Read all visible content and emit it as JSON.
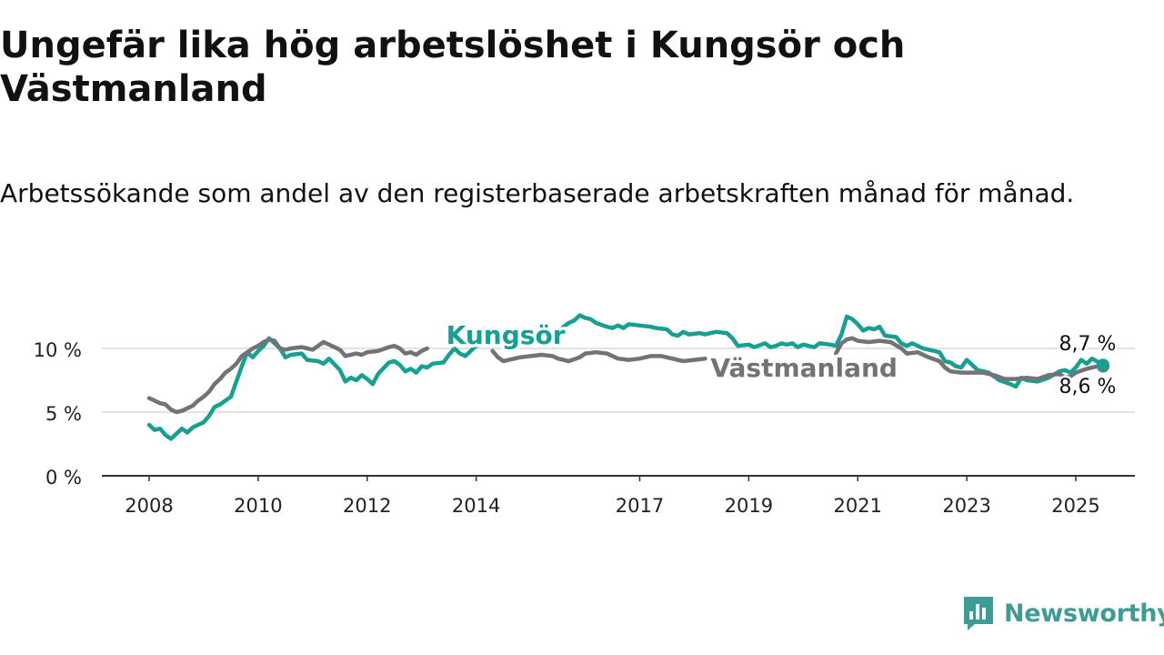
{
  "title": "Ungefär lika hög arbetslöshet i Kungsör och Västmanland",
  "subtitle": "Arbetssökande som andel av den registerbaserade arbetskraften månad för månad.",
  "brand": {
    "name": "Newsworthy",
    "icon": "newsworthy-logo-icon",
    "color": "#3d9c93"
  },
  "chart_data": {
    "type": "line",
    "title": "Ungefär lika hög arbetslöshet i Kungsör och Västmanland",
    "subtitle": "Arbetssökande som andel av den registerbaserade arbetskraften månad för månad.",
    "xlabel": "",
    "ylabel": "",
    "xlim": [
      2008,
      2025.5
    ],
    "ylim": [
      0,
      12
    ],
    "y_ticks": [
      0,
      5,
      10
    ],
    "y_tick_labels": [
      "0 %",
      "5 %",
      "10 %"
    ],
    "x_ticks": [
      2008,
      2010,
      2012,
      2014,
      2017,
      2019,
      2021,
      2023,
      2025
    ],
    "x_tick_labels": [
      "2008",
      "2010",
      "2012",
      "2014",
      "2017",
      "2019",
      "2021",
      "2023",
      "2025"
    ],
    "grid": "horizontal",
    "legend": "direct labels on lines",
    "series": [
      {
        "name": "Kungsör",
        "color": "#16a092",
        "end_label": "8,7 %",
        "label_position": "above line near 2014",
        "points": [
          [
            2008.0,
            4.0
          ],
          [
            2008.1,
            3.6
          ],
          [
            2008.2,
            3.7
          ],
          [
            2008.3,
            3.2
          ],
          [
            2008.4,
            2.9
          ],
          [
            2008.5,
            3.3
          ],
          [
            2008.6,
            3.7
          ],
          [
            2008.7,
            3.4
          ],
          [
            2008.8,
            3.8
          ],
          [
            2008.9,
            4.0
          ],
          [
            2009.0,
            4.2
          ],
          [
            2009.1,
            4.7
          ],
          [
            2009.2,
            5.4
          ],
          [
            2009.3,
            5.6
          ],
          [
            2009.4,
            5.9
          ],
          [
            2009.5,
            6.2
          ],
          [
            2009.6,
            7.4
          ],
          [
            2009.7,
            8.6
          ],
          [
            2009.8,
            9.7
          ],
          [
            2009.9,
            9.3
          ],
          [
            2010.0,
            9.8
          ],
          [
            2010.1,
            10.2
          ],
          [
            2010.2,
            10.8
          ],
          [
            2010.3,
            10.4
          ],
          [
            2010.4,
            10.0
          ],
          [
            2010.5,
            9.3
          ],
          [
            2010.6,
            9.5
          ],
          [
            2010.8,
            9.6
          ],
          [
            2010.9,
            9.1
          ],
          [
            2011.1,
            9.0
          ],
          [
            2011.2,
            8.8
          ],
          [
            2011.3,
            9.2
          ],
          [
            2011.5,
            8.3
          ],
          [
            2011.6,
            7.4
          ],
          [
            2011.7,
            7.7
          ],
          [
            2011.8,
            7.5
          ],
          [
            2011.9,
            7.9
          ],
          [
            2012.0,
            7.6
          ],
          [
            2012.1,
            7.2
          ],
          [
            2012.2,
            8.0
          ],
          [
            2012.4,
            8.9
          ],
          [
            2012.5,
            9.0
          ],
          [
            2012.6,
            8.7
          ],
          [
            2012.7,
            8.2
          ],
          [
            2012.8,
            8.4
          ],
          [
            2012.9,
            8.1
          ],
          [
            2013.0,
            8.6
          ],
          [
            2013.1,
            8.5
          ],
          [
            2013.2,
            8.8
          ],
          [
            2013.4,
            8.9
          ],
          [
            2013.5,
            9.5
          ],
          [
            2013.6,
            10.0
          ],
          [
            2013.7,
            9.6
          ],
          [
            2013.8,
            9.4
          ],
          [
            2014.0,
            10.2
          ],
          [
            2014.5,
            10.6
          ],
          [
            2014.9,
            10.5
          ],
          [
            2015.1,
            10.9
          ],
          [
            2015.3,
            11.0
          ],
          [
            2015.4,
            10.6
          ],
          [
            2015.6,
            11.7
          ],
          [
            2015.7,
            12.0
          ],
          [
            2015.8,
            12.2
          ],
          [
            2015.9,
            12.6
          ],
          [
            2016.0,
            12.4
          ],
          [
            2016.1,
            12.3
          ],
          [
            2016.2,
            12.0
          ],
          [
            2016.4,
            11.7
          ],
          [
            2016.5,
            11.6
          ],
          [
            2016.6,
            11.8
          ],
          [
            2016.7,
            11.6
          ],
          [
            2016.8,
            11.9
          ],
          [
            2017.0,
            11.8
          ],
          [
            2017.2,
            11.7
          ],
          [
            2017.3,
            11.6
          ],
          [
            2017.5,
            11.5
          ],
          [
            2017.6,
            11.1
          ],
          [
            2017.7,
            11.0
          ],
          [
            2017.8,
            11.3
          ],
          [
            2017.9,
            11.1
          ],
          [
            2018.1,
            11.2
          ],
          [
            2018.2,
            11.1
          ],
          [
            2018.4,
            11.3
          ],
          [
            2018.6,
            11.2
          ],
          [
            2018.7,
            10.8
          ],
          [
            2018.8,
            10.2
          ],
          [
            2019.0,
            10.3
          ],
          [
            2019.1,
            10.1
          ],
          [
            2019.3,
            10.4
          ],
          [
            2019.4,
            10.1
          ],
          [
            2019.5,
            10.2
          ],
          [
            2019.6,
            10.4
          ],
          [
            2019.7,
            10.3
          ],
          [
            2019.8,
            10.4
          ],
          [
            2019.9,
            10.1
          ],
          [
            2020.0,
            10.3
          ],
          [
            2020.2,
            10.1
          ],
          [
            2020.3,
            10.4
          ],
          [
            2020.5,
            10.3
          ],
          [
            2020.6,
            10.2
          ],
          [
            2020.7,
            11.1
          ],
          [
            2020.8,
            12.5
          ],
          [
            2020.9,
            12.3
          ],
          [
            2021.0,
            11.9
          ],
          [
            2021.1,
            11.4
          ],
          [
            2021.2,
            11.6
          ],
          [
            2021.3,
            11.5
          ],
          [
            2021.4,
            11.7
          ],
          [
            2021.5,
            11.0
          ],
          [
            2021.7,
            10.9
          ],
          [
            2021.8,
            10.4
          ],
          [
            2021.9,
            10.2
          ],
          [
            2022.0,
            10.4
          ],
          [
            2022.2,
            10.0
          ],
          [
            2022.5,
            9.7
          ],
          [
            2022.6,
            9.0
          ],
          [
            2022.7,
            8.9
          ],
          [
            2022.8,
            8.6
          ],
          [
            2022.9,
            8.5
          ],
          [
            2023.0,
            9.1
          ],
          [
            2023.1,
            8.7
          ],
          [
            2023.2,
            8.3
          ],
          [
            2023.4,
            8.1
          ],
          [
            2023.6,
            7.5
          ],
          [
            2023.8,
            7.2
          ],
          [
            2023.9,
            7.0
          ],
          [
            2024.0,
            7.7
          ],
          [
            2024.1,
            7.5
          ],
          [
            2024.3,
            7.4
          ],
          [
            2024.5,
            7.7
          ],
          [
            2024.7,
            8.2
          ],
          [
            2024.8,
            8.3
          ],
          [
            2024.9,
            8.1
          ],
          [
            2025.0,
            8.5
          ],
          [
            2025.1,
            9.1
          ],
          [
            2025.2,
            8.8
          ],
          [
            2025.3,
            9.2
          ],
          [
            2025.5,
            8.7
          ]
        ]
      },
      {
        "name": "Västmanland",
        "color": "#737277",
        "end_label": "8,6 %",
        "label_position": "right of line near 2018",
        "points": [
          [
            2008.0,
            6.1
          ],
          [
            2008.1,
            5.9
          ],
          [
            2008.2,
            5.7
          ],
          [
            2008.3,
            5.6
          ],
          [
            2008.4,
            5.2
          ],
          [
            2008.5,
            5.0
          ],
          [
            2008.6,
            5.1
          ],
          [
            2008.7,
            5.3
          ],
          [
            2008.8,
            5.5
          ],
          [
            2008.9,
            5.9
          ],
          [
            2009.0,
            6.2
          ],
          [
            2009.1,
            6.6
          ],
          [
            2009.2,
            7.2
          ],
          [
            2009.3,
            7.6
          ],
          [
            2009.4,
            8.1
          ],
          [
            2009.5,
            8.4
          ],
          [
            2009.6,
            8.8
          ],
          [
            2009.7,
            9.4
          ],
          [
            2009.8,
            9.7
          ],
          [
            2009.9,
            10.0
          ],
          [
            2010.0,
            10.2
          ],
          [
            2010.1,
            10.5
          ],
          [
            2010.2,
            10.7
          ],
          [
            2010.3,
            10.6
          ],
          [
            2010.4,
            10.0
          ],
          [
            2010.5,
            9.9
          ],
          [
            2010.6,
            10.0
          ],
          [
            2010.8,
            10.1
          ],
          [
            2010.9,
            10.0
          ],
          [
            2011.0,
            9.9
          ],
          [
            2011.1,
            10.2
          ],
          [
            2011.2,
            10.5
          ],
          [
            2011.3,
            10.3
          ],
          [
            2011.5,
            9.9
          ],
          [
            2011.6,
            9.4
          ],
          [
            2011.7,
            9.5
          ],
          [
            2011.8,
            9.6
          ],
          [
            2011.9,
            9.5
          ],
          [
            2012.0,
            9.7
          ],
          [
            2012.2,
            9.8
          ],
          [
            2012.4,
            10.1
          ],
          [
            2012.5,
            10.2
          ],
          [
            2012.6,
            10.0
          ],
          [
            2012.7,
            9.6
          ],
          [
            2012.8,
            9.7
          ],
          [
            2012.9,
            9.5
          ],
          [
            2013.0,
            9.8
          ],
          [
            2013.1,
            10.0
          ],
          [
            2014.3,
            9.8
          ],
          [
            2014.4,
            9.3
          ],
          [
            2014.5,
            9.0
          ],
          [
            2014.6,
            9.1
          ],
          [
            2014.8,
            9.3
          ],
          [
            2015.0,
            9.4
          ],
          [
            2015.2,
            9.5
          ],
          [
            2015.4,
            9.4
          ],
          [
            2015.5,
            9.2
          ],
          [
            2015.7,
            9.0
          ],
          [
            2015.9,
            9.3
          ],
          [
            2016.0,
            9.6
          ],
          [
            2016.2,
            9.7
          ],
          [
            2016.4,
            9.6
          ],
          [
            2016.6,
            9.2
          ],
          [
            2016.8,
            9.1
          ],
          [
            2017.0,
            9.2
          ],
          [
            2017.2,
            9.4
          ],
          [
            2017.4,
            9.4
          ],
          [
            2017.6,
            9.2
          ],
          [
            2017.8,
            9.0
          ],
          [
            2018.0,
            9.1
          ],
          [
            2018.2,
            9.2
          ],
          [
            2020.6,
            9.6
          ],
          [
            2020.7,
            10.4
          ],
          [
            2020.8,
            10.7
          ],
          [
            2020.9,
            10.8
          ],
          [
            2021.0,
            10.6
          ],
          [
            2021.2,
            10.5
          ],
          [
            2021.4,
            10.6
          ],
          [
            2021.6,
            10.5
          ],
          [
            2021.8,
            10.0
          ],
          [
            2021.9,
            9.6
          ],
          [
            2022.1,
            9.7
          ],
          [
            2022.3,
            9.3
          ],
          [
            2022.5,
            9.0
          ],
          [
            2022.6,
            8.5
          ],
          [
            2022.7,
            8.2
          ],
          [
            2022.9,
            8.1
          ],
          [
            2023.1,
            8.1
          ],
          [
            2023.3,
            8.1
          ],
          [
            2023.5,
            7.9
          ],
          [
            2023.7,
            7.6
          ],
          [
            2023.9,
            7.6
          ],
          [
            2024.1,
            7.7
          ],
          [
            2024.3,
            7.6
          ],
          [
            2024.5,
            7.9
          ],
          [
            2024.7,
            8.0
          ],
          [
            2024.8,
            7.7
          ],
          [
            2024.9,
            7.8
          ],
          [
            2025.0,
            8.1
          ],
          [
            2025.2,
            8.4
          ],
          [
            2025.4,
            8.6
          ],
          [
            2025.5,
            8.6
          ]
        ]
      }
    ]
  }
}
